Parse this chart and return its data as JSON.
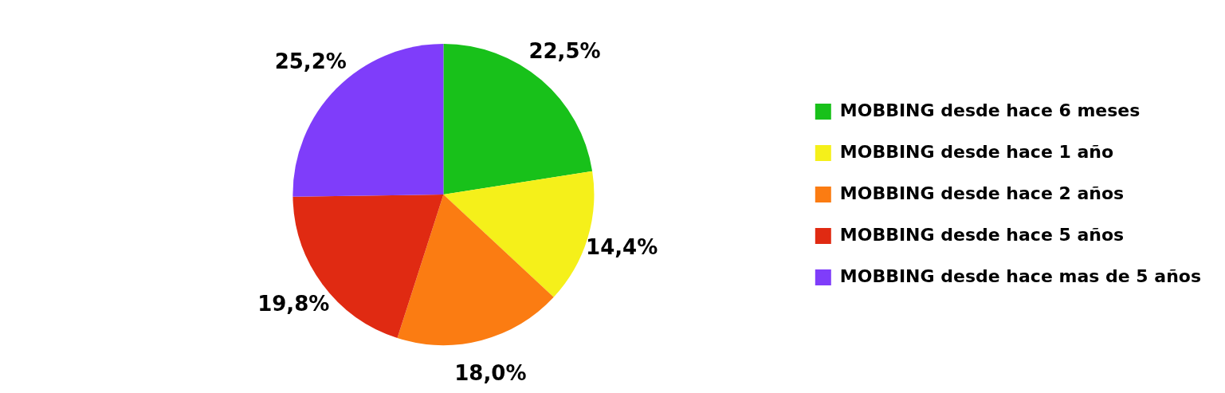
{
  "chart_data": {
    "type": "pie",
    "categories": [
      "MOBBING desde hace 6 meses",
      "MOBBING desde hace 1 año",
      "MOBBING desde hace 2 años",
      "MOBBING desde hace 5 años",
      "MOBBING desde hace mas de 5 años"
    ],
    "values": [
      22.5,
      14.4,
      18.0,
      19.8,
      25.2
    ],
    "colors": [
      "#18c11a",
      "#f5f01a",
      "#fb7c12",
      "#e02a12",
      "#7f3dfa"
    ],
    "value_labels": [
      "22,5%",
      "14,4%",
      "18,0%",
      "19,8%",
      "25,2%"
    ],
    "legend": "right"
  }
}
